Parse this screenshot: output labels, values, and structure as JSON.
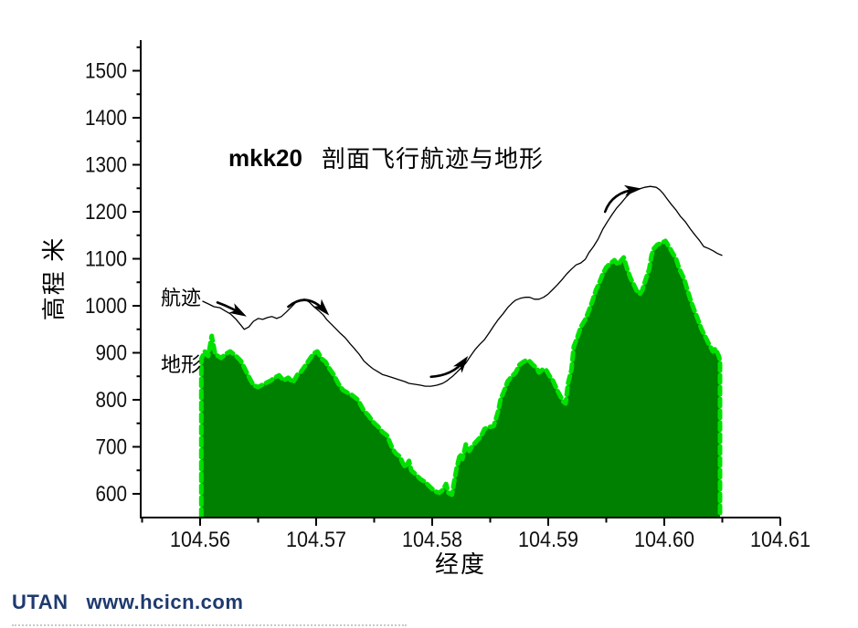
{
  "title": {
    "prefix": "mkk20",
    "main": "剖面飞行航迹与地形"
  },
  "footer": {
    "brand": "UTAN",
    "url": "www.hcicn.com",
    "color": "#1e3a6e"
  },
  "colors": {
    "terrain_fill": "#008000",
    "terrain_edge": "#00e100",
    "flight_line": "#000000"
  },
  "chart_data": {
    "type": "area",
    "title": "mkk20 剖面飞行航迹与地形",
    "xlabel": "经度",
    "ylabel": "高程 米",
    "grid": false,
    "legend_position": "inline-labels",
    "xlim": [
      104.555,
      104.61
    ],
    "ylim": [
      550,
      1560
    ],
    "x_ticks": [
      104.56,
      104.57,
      104.58,
      104.59,
      104.6,
      104.61
    ],
    "x_tick_labels": [
      "104.56",
      "104.57",
      "104.58",
      "104.59",
      "104.60",
      "104.61"
    ],
    "x_minor_ticks": [
      104.555,
      104.565,
      104.575,
      104.585,
      104.595,
      104.605
    ],
    "y_ticks": [
      600,
      700,
      800,
      900,
      1000,
      1100,
      1200,
      1300,
      1400,
      1500
    ],
    "y_minor_ticks": [
      650,
      750,
      850,
      950,
      1050,
      1150,
      1250,
      1350,
      1450,
      1550
    ],
    "series_labels": {
      "path": "航迹",
      "terrain": "地形"
    },
    "series": {
      "path": {
        "name": "航迹",
        "type": "line",
        "color": "#000000",
        "points": [
          [
            104.5602,
            1010
          ],
          [
            104.5607,
            1004
          ],
          [
            104.5612,
            998
          ],
          [
            104.5617,
            996
          ],
          [
            104.5621,
            990
          ],
          [
            104.5626,
            983
          ],
          [
            104.5631,
            971
          ],
          [
            104.5635,
            959
          ],
          [
            104.5638,
            950
          ],
          [
            104.5642,
            955
          ],
          [
            104.5646,
            967
          ],
          [
            104.565,
            973
          ],
          [
            104.5654,
            971
          ],
          [
            104.5658,
            975
          ],
          [
            104.5662,
            977
          ],
          [
            104.5666,
            973
          ],
          [
            104.567,
            977
          ],
          [
            104.5674,
            986
          ],
          [
            104.5678,
            996
          ],
          [
            104.5682,
            1006
          ],
          [
            104.5686,
            1012
          ],
          [
            104.569,
            1014
          ],
          [
            104.5694,
            1008
          ],
          [
            104.5698,
            998
          ],
          [
            104.5702,
            990
          ],
          [
            104.5706,
            981
          ],
          [
            104.5709,
            971
          ],
          [
            104.5713,
            961
          ],
          [
            104.5717,
            951
          ],
          [
            104.5721,
            941
          ],
          [
            104.5725,
            932
          ],
          [
            104.5729,
            920
          ],
          [
            104.5733,
            909
          ],
          [
            104.5737,
            897
          ],
          [
            104.5741,
            883
          ],
          [
            104.5745,
            874
          ],
          [
            104.5749,
            866
          ],
          [
            104.5753,
            860
          ],
          [
            104.5757,
            854
          ],
          [
            104.5761,
            851
          ],
          [
            104.5766,
            847
          ],
          [
            104.5771,
            843
          ],
          [
            104.5776,
            839
          ],
          [
            104.578,
            835
          ],
          [
            104.5785,
            833
          ],
          [
            104.579,
            831
          ],
          [
            104.5794,
            829
          ],
          [
            104.5799,
            829
          ],
          [
            104.5804,
            831
          ],
          [
            104.5809,
            835
          ],
          [
            104.5813,
            841
          ],
          [
            104.5818,
            851
          ],
          [
            104.5821,
            858
          ],
          [
            104.5825,
            868
          ],
          [
            104.5829,
            878
          ],
          [
            104.5833,
            893
          ],
          [
            104.5837,
            907
          ],
          [
            104.5841,
            918
          ],
          [
            104.5845,
            928
          ],
          [
            104.5849,
            942
          ],
          [
            104.5853,
            957
          ],
          [
            104.5857,
            971
          ],
          [
            104.5861,
            983
          ],
          [
            104.5865,
            996
          ],
          [
            104.5869,
            1006
          ],
          [
            104.5872,
            1012
          ],
          [
            104.5876,
            1016
          ],
          [
            104.588,
            1018
          ],
          [
            104.5884,
            1018
          ],
          [
            104.5888,
            1014
          ],
          [
            104.5892,
            1014
          ],
          [
            104.5896,
            1018
          ],
          [
            104.59,
            1025
          ],
          [
            104.5904,
            1035
          ],
          [
            104.5908,
            1045
          ],
          [
            104.5912,
            1056
          ],
          [
            104.5916,
            1068
          ],
          [
            104.592,
            1078
          ],
          [
            104.5924,
            1087
          ],
          [
            104.5928,
            1091
          ],
          [
            104.5932,
            1099
          ],
          [
            104.5935,
            1113
          ],
          [
            104.5939,
            1126
          ],
          [
            104.5943,
            1142
          ],
          [
            104.5947,
            1163
          ],
          [
            104.5951,
            1179
          ],
          [
            104.5955,
            1194
          ],
          [
            104.5959,
            1208
          ],
          [
            104.5963,
            1219
          ],
          [
            104.5967,
            1231
          ],
          [
            104.5971,
            1241
          ],
          [
            104.5975,
            1247
          ],
          [
            104.5979,
            1249
          ],
          [
            104.5983,
            1252
          ],
          [
            104.5988,
            1254
          ],
          [
            104.5993,
            1252
          ],
          [
            104.5996,
            1247
          ],
          [
            104.5999,
            1239
          ],
          [
            104.6002,
            1229
          ],
          [
            104.6006,
            1216
          ],
          [
            104.601,
            1204
          ],
          [
            104.6014,
            1190
          ],
          [
            104.6018,
            1179
          ],
          [
            104.6022,
            1165
          ],
          [
            104.6026,
            1152
          ],
          [
            104.603,
            1140
          ],
          [
            104.6034,
            1126
          ],
          [
            104.6038,
            1122
          ],
          [
            104.6042,
            1117
          ],
          [
            104.6046,
            1111
          ],
          [
            104.605,
            1107
          ]
        ]
      },
      "terrain": {
        "name": "地形",
        "type": "area",
        "fill": "#008000",
        "edge": "#00e100",
        "points": [
          [
            104.5601,
            887
          ],
          [
            104.5604,
            903
          ],
          [
            104.5607,
            893
          ],
          [
            104.561,
            936
          ],
          [
            104.5613,
            897
          ],
          [
            104.5618,
            889
          ],
          [
            104.5623,
            899
          ],
          [
            104.5626,
            903
          ],
          [
            104.5631,
            893
          ],
          [
            104.5635,
            883
          ],
          [
            104.5639,
            864
          ],
          [
            104.5642,
            849
          ],
          [
            104.5646,
            831
          ],
          [
            104.565,
            827
          ],
          [
            104.5656,
            835
          ],
          [
            104.5661,
            841
          ],
          [
            104.5664,
            847
          ],
          [
            104.5668,
            852
          ],
          [
            104.5672,
            841
          ],
          [
            104.5676,
            847
          ],
          [
            104.568,
            837
          ],
          [
            104.5684,
            854
          ],
          [
            104.5687,
            860
          ],
          [
            104.5691,
            874
          ],
          [
            104.5695,
            889
          ],
          [
            104.5698,
            899
          ],
          [
            104.5701,
            903
          ],
          [
            104.5705,
            887
          ],
          [
            104.5708,
            881
          ],
          [
            104.5711,
            868
          ],
          [
            104.5715,
            854
          ],
          [
            104.5719,
            835
          ],
          [
            104.5723,
            821
          ],
          [
            104.5727,
            815
          ],
          [
            104.5731,
            810
          ],
          [
            104.5736,
            800
          ],
          [
            104.5741,
            777
          ],
          [
            104.5745,
            767
          ],
          [
            104.5749,
            753
          ],
          [
            104.5753,
            744
          ],
          [
            104.5757,
            732
          ],
          [
            104.5761,
            724
          ],
          [
            104.5766,
            695
          ],
          [
            104.5769,
            685
          ],
          [
            104.5772,
            680
          ],
          [
            104.5775,
            664
          ],
          [
            104.5777,
            656
          ],
          [
            104.578,
            670
          ],
          [
            104.5782,
            650
          ],
          [
            104.5786,
            641
          ],
          [
            104.579,
            631
          ],
          [
            104.5794,
            625
          ],
          [
            104.5798,
            615
          ],
          [
            104.5802,
            606
          ],
          [
            104.5806,
            602
          ],
          [
            104.5809,
            608
          ],
          [
            104.5812,
            621
          ],
          [
            104.5814,
            602
          ],
          [
            104.5817,
            598
          ],
          [
            104.5819,
            627
          ],
          [
            104.5821,
            654
          ],
          [
            104.5824,
            685
          ],
          [
            104.5826,
            674
          ],
          [
            104.5829,
            705
          ],
          [
            104.5832,
            691
          ],
          [
            104.5835,
            703
          ],
          [
            104.5839,
            714
          ],
          [
            104.5842,
            722
          ],
          [
            104.5845,
            738
          ],
          [
            104.5849,
            742
          ],
          [
            104.5853,
            744
          ],
          [
            104.5857,
            777
          ],
          [
            104.5859,
            802
          ],
          [
            104.5862,
            819
          ],
          [
            104.5865,
            839
          ],
          [
            104.5869,
            851
          ],
          [
            104.5872,
            858
          ],
          [
            104.5875,
            874
          ],
          [
            104.5878,
            880
          ],
          [
            104.5881,
            884
          ],
          [
            104.5884,
            882
          ],
          [
            104.5887,
            874
          ],
          [
            104.589,
            868
          ],
          [
            104.5892,
            858
          ],
          [
            104.5895,
            864
          ],
          [
            104.5898,
            864
          ],
          [
            104.5901,
            851
          ],
          [
            104.5904,
            841
          ],
          [
            104.5908,
            819
          ],
          [
            104.591,
            810
          ],
          [
            104.5913,
            796
          ],
          [
            104.5915,
            792
          ],
          [
            104.5917,
            835
          ],
          [
            104.592,
            864
          ],
          [
            104.5922,
            913
          ],
          [
            104.5925,
            932
          ],
          [
            104.5928,
            955
          ],
          [
            104.5932,
            971
          ],
          [
            104.5935,
            990
          ],
          [
            104.5938,
            1010
          ],
          [
            104.5941,
            1033
          ],
          [
            104.5944,
            1049
          ],
          [
            104.5947,
            1068
          ],
          [
            104.595,
            1082
          ],
          [
            104.5954,
            1091
          ],
          [
            104.5957,
            1097
          ],
          [
            104.596,
            1087
          ],
          [
            104.5963,
            1097
          ],
          [
            104.5965,
            1103
          ],
          [
            104.5968,
            1078
          ],
          [
            104.5971,
            1058
          ],
          [
            104.5973,
            1049
          ],
          [
            104.5976,
            1033
          ],
          [
            104.5979,
            1025
          ],
          [
            104.5981,
            1033
          ],
          [
            104.5983,
            1049
          ],
          [
            104.5987,
            1078
          ],
          [
            104.5989,
            1107
          ],
          [
            104.5991,
            1122
          ],
          [
            104.5994,
            1130
          ],
          [
            104.5998,
            1134
          ],
          [
            104.6001,
            1138
          ],
          [
            104.6004,
            1126
          ],
          [
            104.6007,
            1113
          ],
          [
            104.601,
            1101
          ],
          [
            104.6013,
            1078
          ],
          [
            104.6017,
            1058
          ],
          [
            104.602,
            1033
          ],
          [
            104.6023,
            1010
          ],
          [
            104.6026,
            990
          ],
          [
            104.6029,
            971
          ],
          [
            104.6032,
            951
          ],
          [
            104.6035,
            936
          ],
          [
            104.6039,
            916
          ],
          [
            104.6042,
            903
          ],
          [
            104.6044,
            909
          ],
          [
            104.6047,
            893
          ],
          [
            104.6048,
            883
          ]
        ]
      }
    },
    "annotations": {
      "arrows": [
        {
          "from": [
            104.5615,
            1007
          ],
          "ctrl": [
            104.5625,
            998
          ],
          "to": [
            104.5636,
            983
          ]
        },
        {
          "from": [
            104.5676,
            998
          ],
          "ctrl": [
            104.5692,
            1031
          ],
          "to": [
            104.5708,
            988
          ]
        },
        {
          "from": [
            104.5799,
            849
          ],
          "ctrl": [
            104.5818,
            852
          ],
          "to": [
            104.5828,
            884
          ]
        },
        {
          "from": [
            104.5949,
            1200
          ],
          "ctrl": [
            104.5955,
            1242
          ],
          "to": [
            104.5976,
            1248
          ]
        }
      ]
    }
  }
}
